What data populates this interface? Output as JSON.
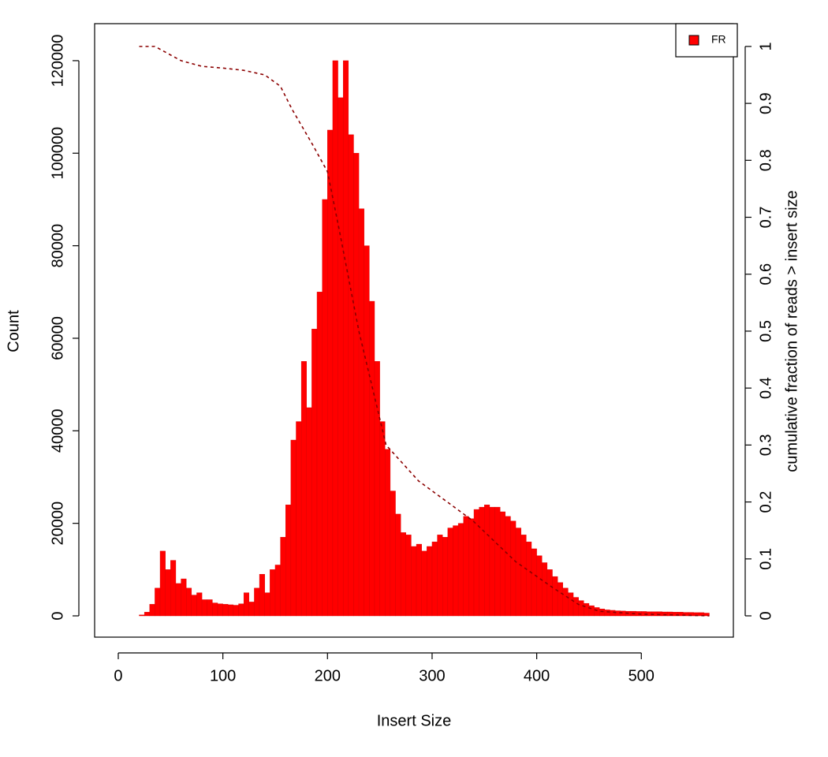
{
  "chart_data": {
    "type": "histogram",
    "name": "FR",
    "xlabel": "Insert Size",
    "ylabel": "Count",
    "y2label": "cumulative fraction of reads > insert size",
    "color": "#ff0000",
    "bins": [
      20,
      25,
      30,
      35,
      40,
      45,
      50,
      55,
      60,
      65,
      70,
      75,
      80,
      85,
      90,
      95,
      100,
      105,
      110,
      115,
      120,
      125,
      130,
      135,
      140,
      145,
      150,
      155,
      160,
      165,
      170,
      175,
      180,
      185,
      190,
      195,
      200,
      205,
      210,
      215,
      220,
      225,
      230,
      235,
      240,
      245,
      250,
      255,
      260,
      265,
      270,
      275,
      280,
      285,
      290,
      295,
      300,
      305,
      310,
      315,
      320,
      325,
      330,
      335,
      340,
      345,
      350,
      355,
      360,
      365,
      370,
      375,
      380,
      385,
      390,
      395,
      400,
      405,
      410,
      415,
      420,
      425,
      430,
      435,
      440,
      445,
      450,
      455,
      460,
      465,
      470,
      475,
      480,
      485,
      490,
      495,
      500,
      505,
      510,
      515,
      520,
      525,
      530,
      535,
      540,
      545,
      550,
      555,
      560,
      565
    ],
    "counts": [
      200,
      800,
      2500,
      6000,
      14000,
      10000,
      12000,
      7000,
      8000,
      6000,
      4500,
      5000,
      3500,
      3500,
      2800,
      2600,
      2500,
      2400,
      2300,
      2600,
      5000,
      3000,
      6000,
      9000,
      5000,
      10000,
      11000,
      17000,
      24000,
      38000,
      42000,
      55000,
      45000,
      62000,
      70000,
      90000,
      105000,
      120000,
      112000,
      120000,
      104000,
      100000,
      88000,
      80000,
      68000,
      55000,
      42000,
      36000,
      27000,
      22000,
      18000,
      17500,
      15000,
      15500,
      14000,
      15000,
      16000,
      17500,
      17000,
      19000,
      19500,
      20000,
      21500,
      21000,
      23000,
      23500,
      24000,
      23500,
      23500,
      22500,
      21500,
      20500,
      19000,
      17500,
      16000,
      14500,
      13000,
      11500,
      10000,
      8500,
      7200,
      6000,
      5000,
      4000,
      3300,
      2700,
      2200,
      1800,
      1500,
      1300,
      1200,
      1100,
      1050,
      1000,
      1000,
      950,
      950,
      900,
      900,
      900,
      850,
      850,
      800,
      800,
      750,
      750,
      700,
      700,
      600
    ],
    "cumulative": {
      "axis": "y2",
      "color": "#8b0000",
      "dashed": true,
      "x": [
        20,
        35,
        45,
        60,
        80,
        100,
        120,
        140,
        155,
        166,
        185,
        200,
        211,
        230,
        256,
        287,
        339,
        380,
        415,
        440,
        460,
        500,
        565
      ],
      "values": [
        1,
        1,
        0.99,
        0.975,
        0.965,
        0.962,
        0.958,
        0.95,
        0.93,
        0.89,
        0.83,
        0.78,
        0.68,
        0.5,
        0.3,
        0.237,
        0.167,
        0.095,
        0.05,
        0.02,
        0.008,
        0.003,
        0
      ]
    },
    "xlim": [
      -22.6,
      588
    ],
    "xticks": [
      0,
      100,
      200,
      300,
      400,
      500
    ],
    "ylim": [
      -4600,
      128000
    ],
    "yticks": [
      0,
      20000,
      40000,
      60000,
      80000,
      100000,
      120000
    ],
    "y2lim": [
      -0.0374,
      1.04
    ],
    "y2ticks": [
      0,
      0.1,
      0.2,
      0.3,
      0.4,
      0.5,
      0.6,
      0.7,
      0.8,
      0.9,
      1
    ],
    "legend": "topright"
  }
}
